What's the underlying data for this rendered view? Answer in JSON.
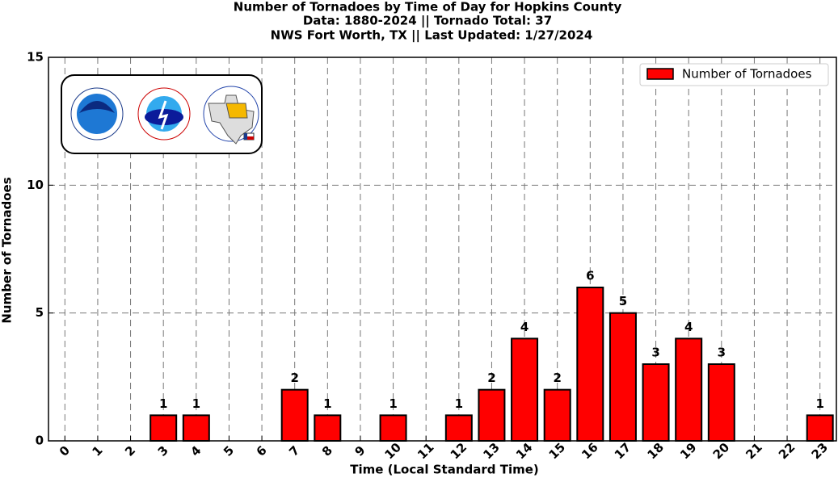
{
  "chart_data": {
    "type": "bar",
    "title": "Number of Tornadoes by Time of Day for Hopkins County",
    "subtitle": [
      "Data: 1880-2024 || Tornado Total: 37",
      "NWS Fort Worth, TX || Last Updated: 1/27/2024"
    ],
    "x_label": "Time (Local Standard Time)",
    "y_label": "Number of Tornadoes",
    "categories": [
      "0",
      "1",
      "2",
      "3",
      "4",
      "5",
      "6",
      "7",
      "8",
      "9",
      "10",
      "11",
      "12",
      "13",
      "14",
      "15",
      "16",
      "17",
      "18",
      "19",
      "20",
      "21",
      "22",
      "23"
    ],
    "series": [
      {
        "name": "Number of Tornadoes",
        "color": "#ff0000",
        "values": [
          0,
          0,
          0,
          1,
          1,
          0,
          0,
          2,
          1,
          0,
          1,
          0,
          1,
          2,
          4,
          2,
          6,
          5,
          3,
          4,
          3,
          0,
          0,
          1
        ]
      }
    ],
    "ylim": [
      0,
      15
    ],
    "yticks": [
      0,
      5,
      10,
      15
    ],
    "grid": true,
    "legend": "upper right"
  }
}
